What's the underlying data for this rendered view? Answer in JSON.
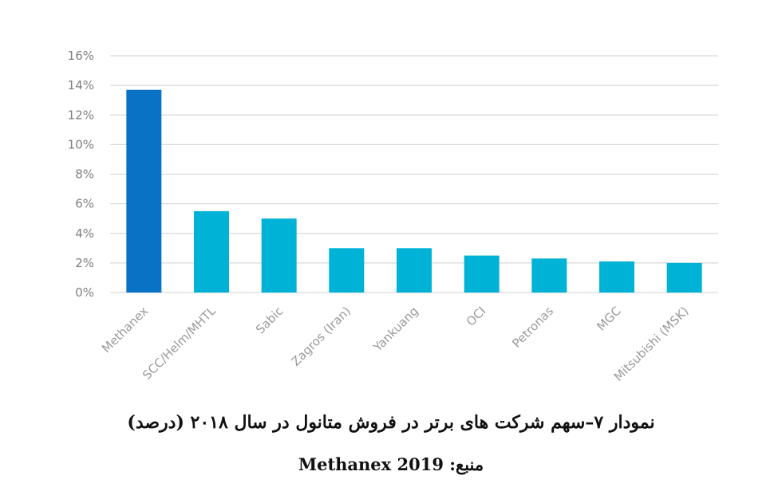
{
  "chart_data": {
    "type": "bar",
    "categories": [
      "Methanex",
      "SCC/Helm/MHTL",
      "Sabic",
      "Zagros (Iran)",
      "Yankuang",
      "OCI",
      "Petronas",
      "MGC",
      "Mitsubishi (MSK)"
    ],
    "values": [
      13.7,
      5.5,
      5.0,
      3.0,
      3.0,
      2.5,
      2.3,
      2.1,
      2.0
    ],
    "ylim": [
      0,
      16
    ],
    "yticks": [
      "0%",
      "2%",
      "4%",
      "6%",
      "8%",
      "10%",
      "12%",
      "14%",
      "16%"
    ],
    "ytick_values": [
      0,
      2,
      4,
      6,
      8,
      10,
      12,
      14,
      16
    ],
    "grid": true,
    "highlight_category": "Methanex",
    "colors": {
      "highlight": "#0a72c4",
      "default": "#00b2d6",
      "grid": "#d9d9d9"
    }
  },
  "caption": {
    "title": "نمودار ۷–سهم شرکت های برتر در فروش متانول در سال ۲۰۱۸ (درصد)",
    "source": "منبع: Methanex 2019"
  }
}
